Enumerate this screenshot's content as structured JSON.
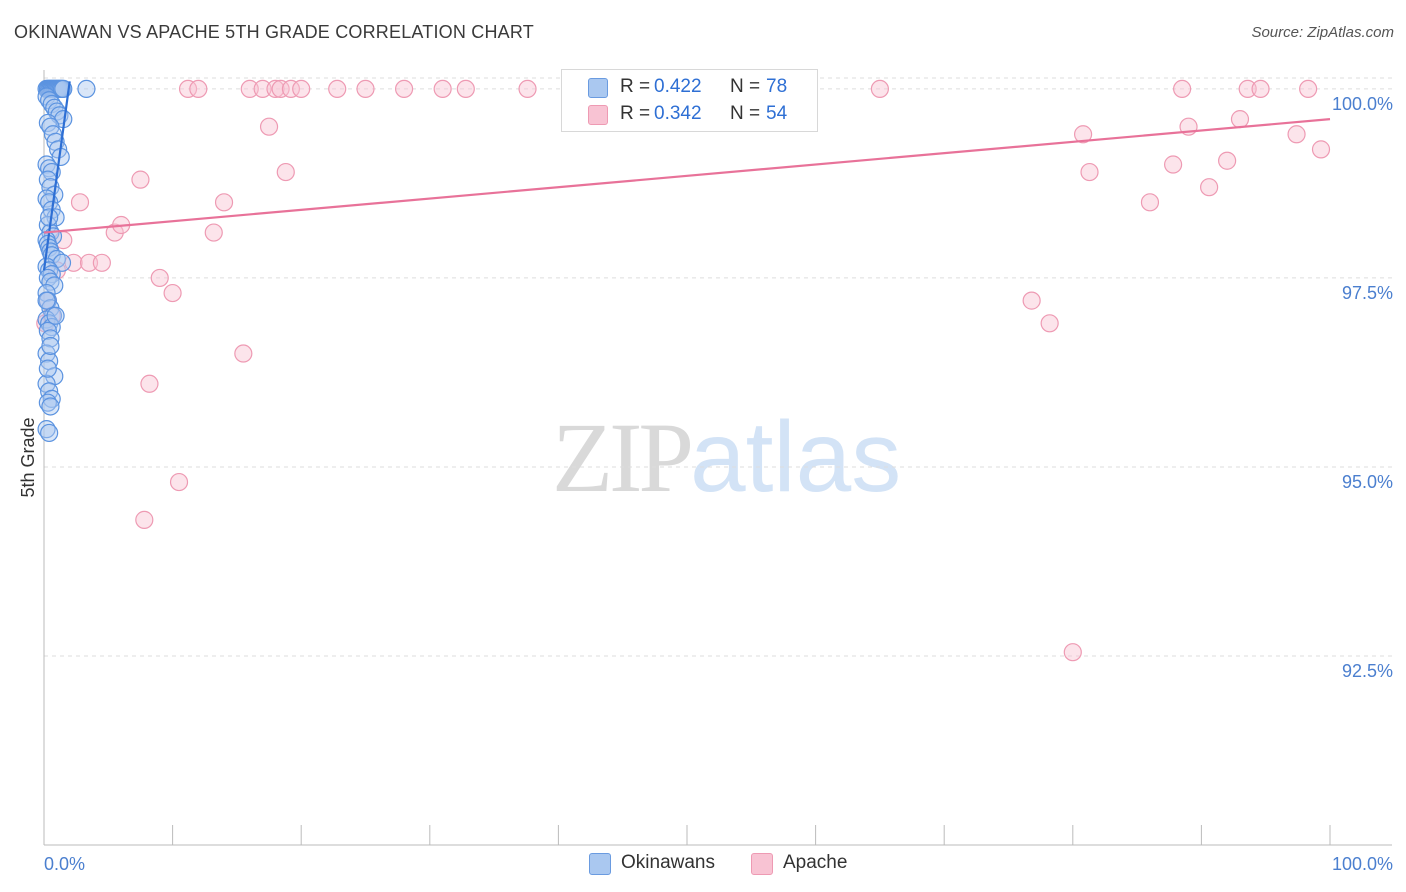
{
  "title": "OKINAWAN VS APACHE 5TH GRADE CORRELATION CHART",
  "source": "Source: ZipAtlas.com",
  "watermark": {
    "zip": "ZIP",
    "atlas": "atlas"
  },
  "legend": {
    "rows": [
      {
        "r_label": "R =",
        "r_value": "0.422",
        "n_label": "N =",
        "n_value": "78",
        "color": "#aac8f0",
        "border": "#6a9be0"
      },
      {
        "r_label": "R =",
        "r_value": "0.342",
        "n_label": "N =",
        "n_value": "54",
        "color": "#f8c3d3",
        "border": "#ee9ab3"
      }
    ]
  },
  "bottom_legend": [
    {
      "label": "Okinawans",
      "color": "#aac8f0",
      "border": "#6a9be0"
    },
    {
      "label": "Apache",
      "color": "#f8c3d3",
      "border": "#ee9ab3"
    }
  ],
  "chart_data": {
    "type": "scatter",
    "title": "OKINAWAN VS APACHE 5TH GRADE CORRELATION CHART",
    "xlabel": "",
    "ylabel": "5th Grade",
    "xlim": [
      0,
      100
    ],
    "ylim": [
      90.0,
      100.25
    ],
    "x_tick_labels": [
      "0.0%",
      "100.0%"
    ],
    "y_ticks": [
      92.5,
      95.0,
      97.5,
      100.0
    ],
    "y_tick_labels": [
      "92.5%",
      "95.0%",
      "97.5%",
      "100.0%"
    ],
    "grid": true,
    "legend_position": "top-center",
    "series": [
      {
        "name": "Okinawans",
        "color": "#5b93e0",
        "trend": {
          "x": [
            0.0,
            2.0
          ],
          "y": [
            97.6,
            100.1
          ],
          "color": "#2e6fd4"
        },
        "x": [
          0.2,
          0.3,
          0.4,
          0.5,
          0.6,
          0.7,
          0.8,
          0.9,
          1.0,
          1.1,
          1.2,
          1.3,
          1.4,
          1.5,
          3.3,
          0.2,
          0.4,
          0.6,
          0.8,
          1.0,
          1.2,
          1.5,
          0.3,
          0.5,
          0.7,
          0.9,
          1.1,
          1.3,
          0.2,
          0.4,
          0.6,
          0.3,
          0.5,
          0.8,
          0.2,
          0.4,
          0.6,
          0.9,
          0.3,
          0.5,
          0.7,
          0.2,
          0.3,
          0.4,
          0.5,
          0.6,
          1.0,
          1.4,
          0.2,
          0.4,
          0.6,
          0.3,
          0.5,
          0.8,
          0.2,
          0.3,
          0.5,
          0.7,
          0.2,
          0.4,
          0.6,
          0.3,
          0.5,
          0.2,
          0.4,
          0.8,
          0.2,
          0.4,
          0.6,
          0.3,
          0.5,
          0.2,
          0.4,
          0.9,
          0.3,
          0.5,
          0.2,
          0.4
        ],
        "y": [
          100.0,
          100.0,
          100.0,
          100.0,
          100.0,
          100.0,
          100.0,
          100.0,
          100.0,
          100.0,
          100.0,
          100.0,
          100.0,
          100.0,
          100.0,
          99.9,
          99.85,
          99.8,
          99.75,
          99.7,
          99.65,
          99.6,
          99.55,
          99.5,
          99.4,
          99.3,
          99.2,
          99.1,
          99.0,
          98.95,
          98.9,
          98.8,
          98.7,
          98.6,
          98.55,
          98.5,
          98.4,
          98.3,
          98.2,
          98.1,
          98.05,
          98.0,
          97.95,
          97.9,
          97.85,
          97.8,
          97.75,
          97.7,
          97.65,
          97.6,
          97.55,
          97.5,
          97.45,
          97.4,
          97.3,
          97.2,
          97.1,
          97.0,
          96.95,
          96.9,
          96.85,
          96.8,
          96.7,
          96.5,
          96.4,
          96.2,
          96.1,
          96.0,
          95.9,
          95.85,
          95.8,
          95.5,
          95.45,
          97.0,
          96.3,
          96.6,
          97.2,
          98.3
        ]
      },
      {
        "name": "Apache",
        "color": "#f08fab",
        "trend": {
          "x": [
            0.0,
            100.0
          ],
          "y": [
            98.1,
            99.6
          ],
          "color": "#e87299"
        },
        "x": [
          0.1,
          0.3,
          0.6,
          1.0,
          1.5,
          2.3,
          2.8,
          3.5,
          4.5,
          5.5,
          6.0,
          7.5,
          7.8,
          8.2,
          9.0,
          10.0,
          10.5,
          11.2,
          12.0,
          13.2,
          14.0,
          15.5,
          16.0,
          17.0,
          17.5,
          18.0,
          18.4,
          18.8,
          19.2,
          20.0,
          22.8,
          25.0,
          28.0,
          31.0,
          32.8,
          37.6,
          65.0,
          76.8,
          78.2,
          80.0,
          80.8,
          81.3,
          86.0,
          87.8,
          88.5,
          89.0,
          90.6,
          92.0,
          93.0,
          93.6,
          94.6,
          97.4,
          98.3,
          99.3
        ],
        "y": [
          96.9,
          97.2,
          97.0,
          97.6,
          98.0,
          97.7,
          98.5,
          97.7,
          97.7,
          98.1,
          98.2,
          98.8,
          94.3,
          96.1,
          97.5,
          97.3,
          94.8,
          100.0,
          100.0,
          98.1,
          98.5,
          96.5,
          100.0,
          100.0,
          99.5,
          100.0,
          100.0,
          98.9,
          100.0,
          100.0,
          100.0,
          100.0,
          100.0,
          100.0,
          100.0,
          100.0,
          100.0,
          97.2,
          96.9,
          92.55,
          99.4,
          98.9,
          98.5,
          99.0,
          100.0,
          99.5,
          98.7,
          99.05,
          99.6,
          100.0,
          100.0,
          99.4,
          100.0,
          99.2
        ]
      }
    ]
  }
}
